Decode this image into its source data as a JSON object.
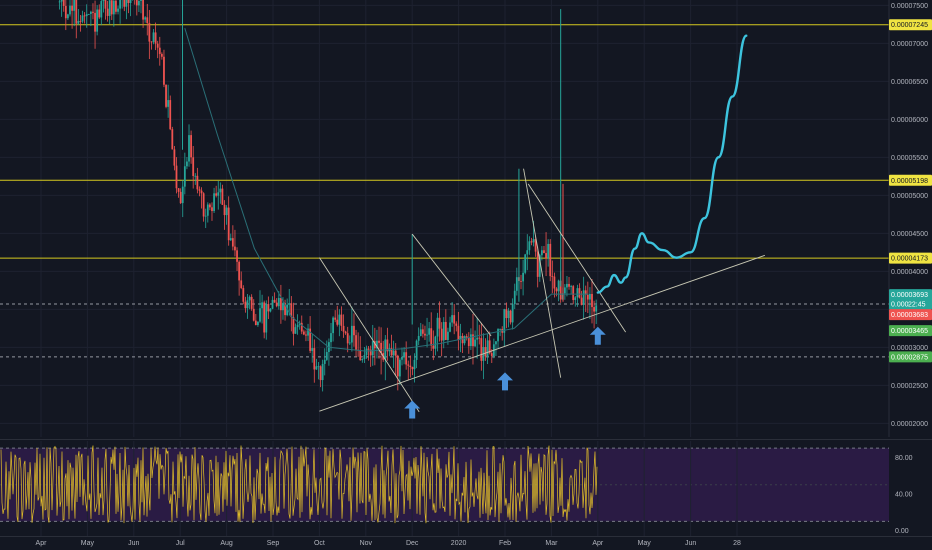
{
  "chart_data": [
    {
      "type": "candlestick",
      "title": "",
      "x_tick_labels": [
        "Apr",
        "May",
        "Jun",
        "Jul",
        "Aug",
        "Sep",
        "Oct",
        "Nov",
        "Dec",
        "2020",
        "Feb",
        "Mar",
        "Apr",
        "May",
        "Jun",
        "28"
      ],
      "y_tick_labels": [
        "0.00007500",
        "0.00007000",
        "0.00006500",
        "0.00006000",
        "0.00005500",
        "0.00005000",
        "0.00004500",
        "0.00004000",
        "0.00003500",
        "0.00003000",
        "0.00002500",
        "0.00002000"
      ],
      "y_ticks": [
        7.5e-05,
        7e-05,
        6.5e-05,
        6e-05,
        5.5e-05,
        5e-05,
        4.5e-05,
        4e-05,
        3.5e-05,
        3e-05,
        2.5e-05,
        2e-05
      ],
      "ylim": [
        1.82e-05,
        7.57e-05
      ],
      "horizontal_levels": [
        {
          "value": 7.245e-05,
          "label": "0.00007245",
          "color": "#d4c81f"
        },
        {
          "value": 5.198e-05,
          "label": "0.00005198",
          "color": "#d4c81f"
        },
        {
          "value": 4.173e-05,
          "label": "0.00004173",
          "color": "#d4c81f"
        }
      ],
      "dashed_levels": [
        {
          "value": 3.57e-05,
          "color": "#9598a1"
        },
        {
          "value": 2.875e-05,
          "color": "#9598a1"
        }
      ],
      "price_tags": [
        {
          "label": "0.00007245",
          "value": 7.245e-05,
          "bg": "#f0e442"
        },
        {
          "label": "0.00005198",
          "value": 5.198e-05,
          "bg": "#f0e442"
        },
        {
          "label": "0.00004173",
          "value": 4.173e-05,
          "bg": "#f0e442"
        },
        {
          "label": "0.00003693",
          "value": 3.693e-05,
          "bg": "#26a69a"
        },
        {
          "label": "0.000",
          "value": 3.57e-05,
          "bg": "#26a69a",
          "extra": "22:45"
        },
        {
          "label": "0.00003683",
          "value": 3.43e-05,
          "bg": "#ef5350"
        },
        {
          "label": "0.00003465",
          "value": 3.22e-05,
          "bg": "#4caf50"
        },
        {
          "label": "0.00002875",
          "value": 2.875e-05,
          "bg": "#4caf50"
        }
      ],
      "price_path": [
        [
          0.4,
          7.55e-05
        ],
        [
          1.0,
          7.28e-05
        ],
        [
          2.0,
          7.65e-05
        ],
        [
          2.6,
          6.8e-05
        ],
        [
          2.9,
          5.2e-05
        ],
        [
          3.0,
          5e-05
        ],
        [
          3.2,
          5.7e-05
        ],
        [
          3.4,
          5e-05
        ],
        [
          3.6,
          4.7e-05
        ],
        [
          3.8,
          5.1e-05
        ],
        [
          4.0,
          4.7e-05
        ],
        [
          4.2,
          4.1e-05
        ],
        [
          4.5,
          3.5e-05
        ],
        [
          4.8,
          3.38e-05
        ],
        [
          5.0,
          3.65e-05
        ],
        [
          5.3,
          3.52e-05
        ],
        [
          5.5,
          3.35e-05
        ],
        [
          5.8,
          2.98e-05
        ],
        [
          6.0,
          2.5e-05
        ],
        [
          6.15,
          2.9e-05
        ],
        [
          6.3,
          3.45e-05
        ],
        [
          6.6,
          3.15e-05
        ],
        [
          6.9,
          2.85e-05
        ],
        [
          7.2,
          3.02e-05
        ],
        [
          7.5,
          2.9e-05
        ],
        [
          7.8,
          2.82e-05
        ],
        [
          8.0,
          2.75e-05
        ],
        [
          8.2,
          3.2e-05
        ],
        [
          8.5,
          3.18e-05
        ],
        [
          8.8,
          3.32e-05
        ],
        [
          9.0,
          3.22e-05
        ],
        [
          9.3,
          3.1e-05
        ],
        [
          9.6,
          2.9e-05
        ],
        [
          9.8,
          3.08e-05
        ],
        [
          10.0,
          3.35e-05
        ],
        [
          10.3,
          3.8e-05
        ],
        [
          10.5,
          4.55e-05
        ],
        [
          10.7,
          4e-05
        ],
        [
          10.9,
          4.4e-05
        ],
        [
          11.0,
          3.9e-05
        ],
        [
          11.2,
          3.75e-05
        ],
        [
          11.4,
          3.8e-05
        ],
        [
          11.6,
          3.6e-05
        ],
        [
          11.8,
          3.65e-05
        ],
        [
          12.0,
          3.67e-05
        ]
      ],
      "moving_average": [
        [
          3.1,
          7.2e-05
        ],
        [
          3.8,
          5.8e-05
        ],
        [
          4.6,
          4.3e-05
        ],
        [
          5.4,
          3.4e-05
        ],
        [
          6.2,
          3e-05
        ],
        [
          7.0,
          2.95e-05
        ],
        [
          7.8,
          2.98e-05
        ],
        [
          8.6,
          3.05e-05
        ],
        [
          9.4,
          3.15e-05
        ],
        [
          10.2,
          3.25e-05
        ],
        [
          11.0,
          3.7e-05
        ],
        [
          11.8,
          3.7e-05
        ]
      ],
      "projection": [
        [
          12.0,
          3.72e-05
        ],
        [
          12.2,
          3.8e-05
        ],
        [
          12.35,
          3.95e-05
        ],
        [
          12.5,
          3.85e-05
        ],
        [
          12.6,
          3.92e-05
        ],
        [
          12.8,
          4.3e-05
        ],
        [
          12.95,
          4.5e-05
        ],
        [
          13.1,
          4.38e-05
        ],
        [
          13.4,
          4.28e-05
        ],
        [
          13.7,
          4.18e-05
        ],
        [
          14.0,
          4.25e-05
        ],
        [
          14.3,
          4.7e-05
        ],
        [
          14.6,
          5.5e-05
        ],
        [
          14.9,
          6.3e-05
        ],
        [
          15.2,
          7.1e-05
        ]
      ],
      "trend_lines": [
        {
          "x1": 6.0,
          "y1": 2.16e-05,
          "x2": 15.6,
          "y2": 4.21e-05
        },
        {
          "x1": 6.0,
          "y1": 4.18e-05,
          "x2": 8.15,
          "y2": 2.15e-05
        },
        {
          "x1": 8.0,
          "y1": 4.49e-05,
          "x2": 9.7,
          "y2": 3.15e-05
        },
        {
          "x1": 10.4,
          "y1": 5.35e-05,
          "x2": 11.2,
          "y2": 2.6e-05
        },
        {
          "x1": 10.5,
          "y1": 5.15e-05,
          "x2": 12.6,
          "y2": 3.2e-05
        }
      ],
      "arrows": [
        {
          "x": 8.0,
          "value": 2.3e-05
        },
        {
          "x": 10.0,
          "value": 2.67e-05
        },
        {
          "x": 12.0,
          "value": 3.27e-05
        }
      ],
      "volatility": 2.3e-06
    },
    {
      "type": "oscillator",
      "y_tick_labels": [
        "80.00",
        "40.00",
        "0.00"
      ],
      "y_ticks": [
        80,
        40,
        0
      ],
      "ylim": [
        -6,
        100
      ],
      "bands": {
        "upper": 90,
        "lower": 10
      },
      "band_fill": "#2a1b44",
      "line_color": "#e6c229",
      "x_end": 12.0
    }
  ]
}
